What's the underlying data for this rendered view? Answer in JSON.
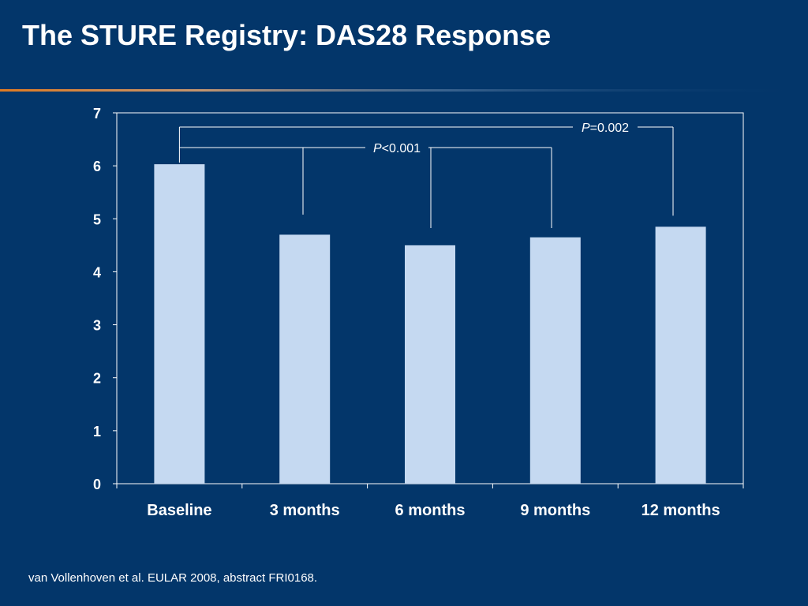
{
  "slide": {
    "title": "The STURE Registry: DAS28 Response",
    "citation": "van Vollenhoven et al. EULAR 2008, abstract FRI0168."
  },
  "colors": {
    "background": "#03366a",
    "bar": "#c5d9f1",
    "text": "#ffffff",
    "divider_accent": "#e07b22"
  },
  "chart_data": {
    "type": "bar",
    "categories": [
      "Baseline",
      "3 months",
      "6 months",
      "9 months",
      "12 months"
    ],
    "values": [
      6.03,
      4.7,
      4.5,
      4.65,
      4.85
    ],
    "yticks": [
      "0",
      "1",
      "2",
      "3",
      "4",
      "5",
      "6",
      "7"
    ],
    "ylim": [
      0,
      7
    ],
    "grid": false,
    "annotations": [
      {
        "p_italic": "P",
        "text": "<0.001",
        "from": "Baseline",
        "to": [
          "3 months",
          "6 months",
          "9 months"
        ]
      },
      {
        "p_italic": "P",
        "text": "=0.002",
        "from": "Baseline",
        "to": [
          "12 months"
        ]
      }
    ]
  }
}
